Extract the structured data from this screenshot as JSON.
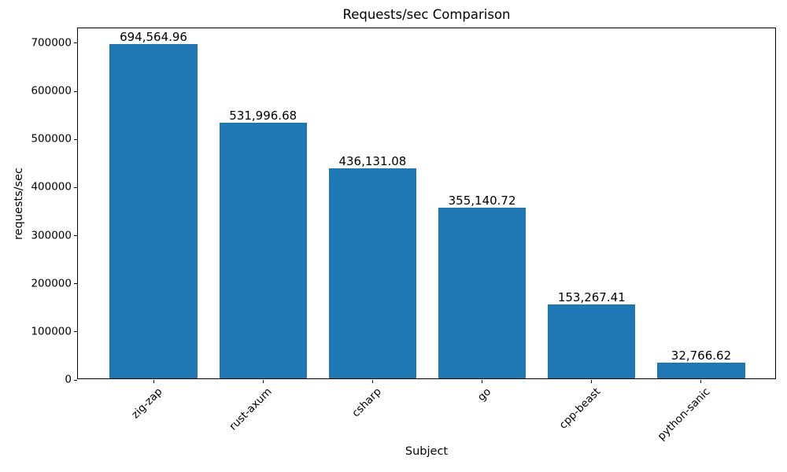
{
  "chart_data": {
    "type": "bar",
    "title": "Requests/sec Comparison",
    "xlabel": "Subject",
    "ylabel": "requests/sec",
    "categories": [
      "zig-zap",
      "rust-axum",
      "csharp",
      "go",
      "cpp-beast",
      "python-sanic"
    ],
    "values": [
      694564.96,
      531996.68,
      436131.08,
      355140.72,
      153267.41,
      32766.62
    ],
    "value_labels": [
      "694,564.96",
      "531,996.68",
      "436,131.08",
      "355,140.72",
      "153,267.41",
      "32,766.62"
    ],
    "yticks": [
      0,
      100000,
      200000,
      300000,
      400000,
      500000,
      600000,
      700000
    ],
    "ytick_labels": [
      "0",
      "100000",
      "200000",
      "300000",
      "400000",
      "500000",
      "600000",
      "700000"
    ],
    "ylim": [
      0,
      731000
    ],
    "x_tick_rotation_deg": 45,
    "grid": false,
    "legend": null,
    "bar_color": "#1f77b4",
    "text_color": "#000000",
    "spine_color": "#000000",
    "background_color": "#ffffff"
  }
}
